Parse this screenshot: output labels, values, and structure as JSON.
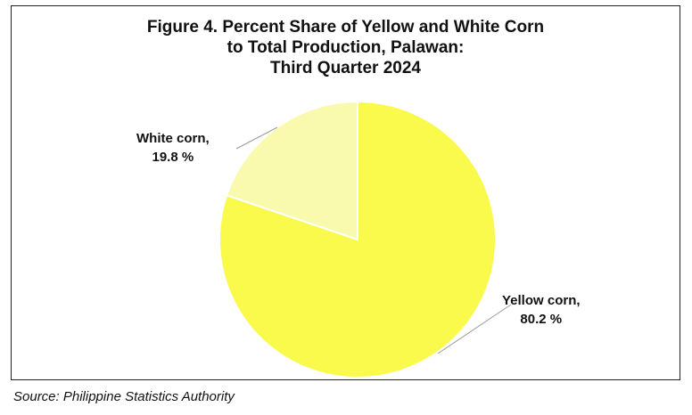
{
  "chart_data": {
    "type": "pie",
    "title_lines": [
      "Figure 4. Percent Share of Yellow and White Corn",
      "to Total Production, Palawan:",
      "Third Quarter 2024"
    ],
    "slices": [
      {
        "name": "Yellow corn,",
        "value": 80.2,
        "value_label": "80.2 %",
        "color": "#fafa4d"
      },
      {
        "name": "White corn,",
        "value": 19.8,
        "value_label": "19.8 %",
        "color": "#fafaaf"
      }
    ],
    "start_angle_deg": 0,
    "direction": "clockwise",
    "legend": "none"
  },
  "source": "Source: Philippine Statistics Authority"
}
